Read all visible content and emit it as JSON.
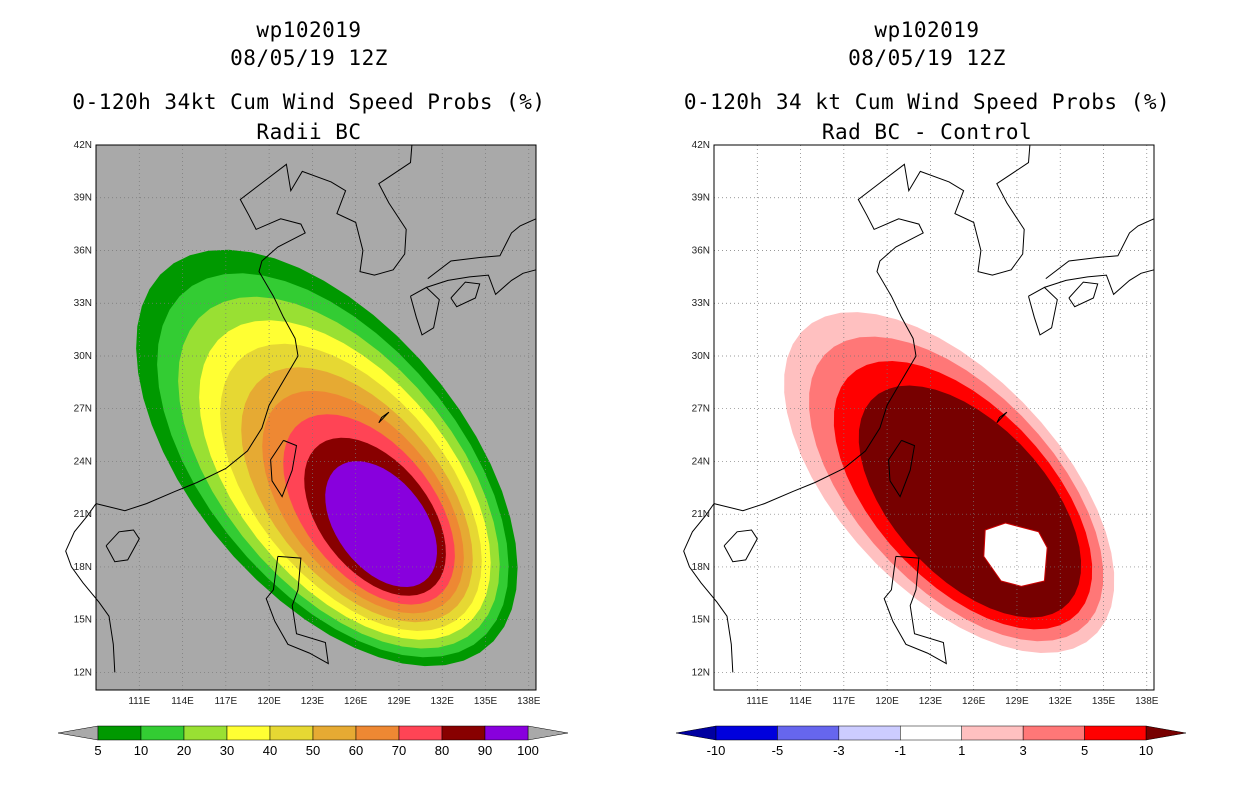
{
  "panels": [
    {
      "id": "left",
      "storm_id": "wp102019",
      "datetime": "08/05/19 12Z",
      "product": "0-120h 34kt Cum Wind Speed Probs (%)",
      "subtitle": "Radii BC",
      "background": "#a9a9a9",
      "colorbar": {
        "labels": [
          "5",
          "10",
          "20",
          "30",
          "40",
          "50",
          "60",
          "70",
          "80",
          "90",
          "100"
        ],
        "colors": [
          "#009900",
          "#33cc33",
          "#99e033",
          "#ffff33",
          "#e6d833",
          "#e6aa33",
          "#ee8833",
          "#ff4455",
          "#880000",
          "#8800dd"
        ],
        "under_color": "#a9a9a9",
        "over_color": "#a9a9a9"
      },
      "field": {
        "levels": [
          5,
          10,
          20,
          30,
          40,
          50,
          60,
          70,
          80,
          90
        ],
        "colors": [
          "#009900",
          "#33cc33",
          "#99e033",
          "#ffff33",
          "#e6d833",
          "#e6aa33",
          "#ee8833",
          "#ff4455",
          "#880000",
          "#8800dd"
        ]
      }
    },
    {
      "id": "right",
      "storm_id": "wp102019",
      "datetime": "08/05/19 12Z",
      "product": "0-120h 34 kt Cum Wind Speed Probs (%)",
      "subtitle": "Rad BC - Control",
      "background": "#ffffff",
      "colorbar": {
        "labels": [
          "-10",
          "-5",
          "-3",
          "-1",
          "1",
          "3",
          "5",
          "10"
        ],
        "colors": [
          "#0000dd",
          "#6666ee",
          "#ccccff",
          "#ffffff",
          "#ffc0c0",
          "#ff7777",
          "#ff0000"
        ],
        "under_color": "#0000a0",
        "over_color": "#770000"
      },
      "field": {
        "levels": [
          1,
          3,
          5,
          10
        ],
        "colors": [
          "#ffc0c0",
          "#ff7777",
          "#ff0000",
          "#770000"
        ]
      }
    }
  ],
  "map": {
    "lon_ticks": [
      "111E",
      "114E",
      "117E",
      "120E",
      "123E",
      "126E",
      "129E",
      "132E",
      "135E",
      "138E"
    ],
    "lat_ticks": [
      "12N",
      "15N",
      "18N",
      "21N",
      "24N",
      "27N",
      "30N",
      "33N",
      "36N",
      "39N",
      "42N"
    ],
    "lon_range": [
      108,
      138.5
    ],
    "lat_range": [
      11,
      42
    ]
  }
}
